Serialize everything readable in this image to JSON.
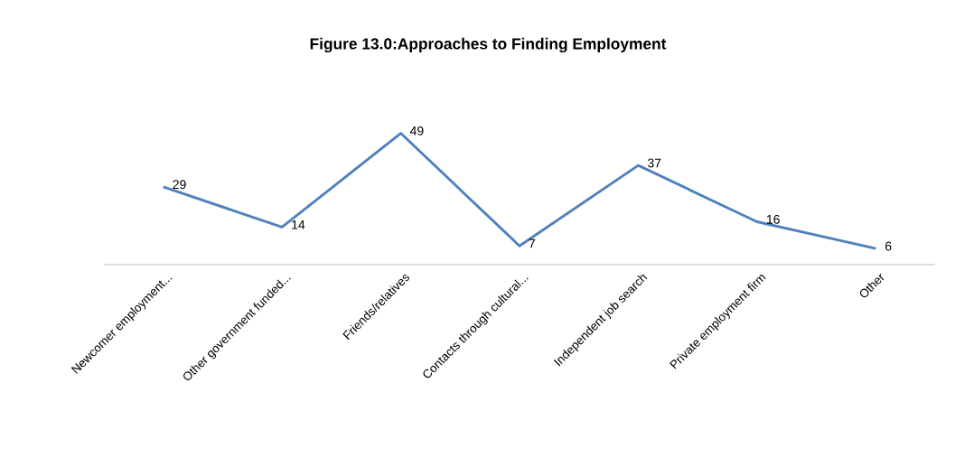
{
  "chart_data": {
    "type": "line",
    "title": "Figure 13.0:Approaches to Finding Employment",
    "categories": [
      "Newcomer employment...",
      "Other government funded...",
      "Friends/relatives",
      "Contacts through cultural...",
      "Independent job search",
      "Private employment firm",
      "Other"
    ],
    "values": [
      29,
      14,
      49,
      7,
      37,
      16,
      6
    ],
    "color": "#4f81bd",
    "data_labels": true,
    "marker": "none",
    "line_style": "solid"
  }
}
